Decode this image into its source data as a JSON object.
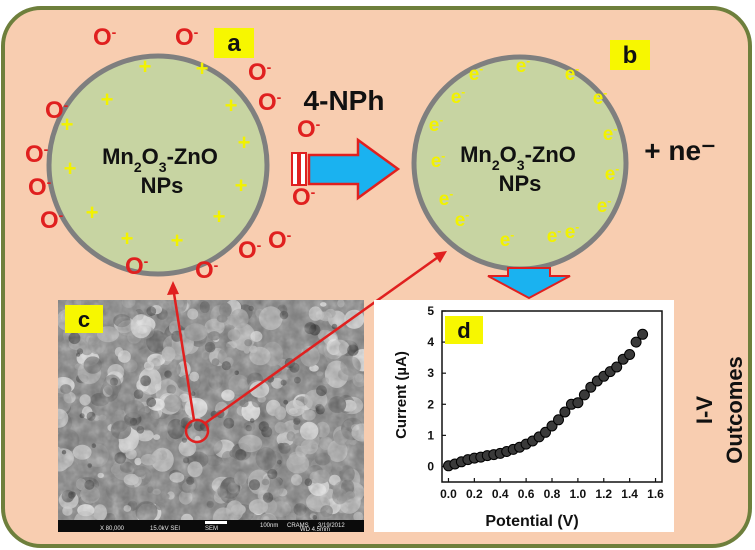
{
  "panel_labels": {
    "a": "a",
    "b": "b",
    "c": "c",
    "d": "d"
  },
  "colors": {
    "background": "#f8cdb0",
    "border": "#6e7f3c",
    "particle_fill": "#c7d4a2",
    "particle_stroke": "#7f7f7f",
    "anion": "#e0201f",
    "cation": "#f2f200",
    "electron": "#f2f200",
    "arrow_fill": "#1ab2f0",
    "arrow_stroke": "#e0201f",
    "label_bg": "#f7f700",
    "data_point": "#3a3a3a"
  },
  "particle_a": {
    "name_main": "Mn",
    "sub1": "2",
    "name_mid": "O",
    "sub2": "3",
    "name_tail": "-ZnO",
    "line2": "NPs",
    "anion_base": "O",
    "anion_sup": "-",
    "cation": "+"
  },
  "particle_b": {
    "name_main": "Mn",
    "sub1": "2",
    "name_mid": "O",
    "sub2": "3",
    "name_tail": "-ZnO",
    "line2": "NPs",
    "electron_base": "e",
    "electron_sup": "-"
  },
  "reactant_label": "4-NPh",
  "product_label": "+ ne⁻",
  "outcome_label_1": "I-V",
  "outcome_label_2": "Outcomes",
  "sem_scalebar": {
    "magnification": "X 80,000",
    "voltage": "15.0kV SEI",
    "detector": "SEM",
    "wd": "WD 4.5mm",
    "scale": "100nm",
    "lab": "CRAMS",
    "date": "3/19/2012"
  },
  "chart_data": {
    "type": "scatter",
    "xlabel": "Potential (V)",
    "ylabel": "Current (µA)",
    "xlim": [
      -0.05,
      1.65
    ],
    "ylim": [
      -0.5,
      5
    ],
    "xticks": [
      "0.0",
      "0.2",
      "0.4",
      "0.6",
      "0.8",
      "1.0",
      "1.2",
      "1.4",
      "1.6"
    ],
    "yticks": [
      "0",
      "1",
      "2",
      "3",
      "4",
      "5"
    ],
    "x": [
      0.0,
      0.05,
      0.1,
      0.15,
      0.2,
      0.25,
      0.3,
      0.35,
      0.4,
      0.45,
      0.5,
      0.55,
      0.6,
      0.65,
      0.7,
      0.75,
      0.8,
      0.85,
      0.9,
      0.95,
      1.0,
      1.05,
      1.1,
      1.15,
      1.2,
      1.25,
      1.3,
      1.35,
      1.4,
      1.45,
      1.5
    ],
    "y": [
      0.02,
      0.08,
      0.15,
      0.22,
      0.27,
      0.3,
      0.35,
      0.38,
      0.42,
      0.48,
      0.55,
      0.62,
      0.72,
      0.82,
      0.95,
      1.1,
      1.3,
      1.5,
      1.75,
      2.0,
      2.05,
      2.3,
      2.55,
      2.75,
      2.9,
      3.05,
      3.2,
      3.45,
      3.6,
      4.0,
      4.25
    ]
  }
}
